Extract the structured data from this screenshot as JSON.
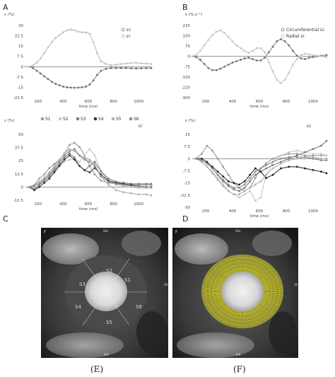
{
  "panel_letters": {
    "a": "A",
    "b": "B",
    "c": "C",
    "d": "D"
  },
  "chart_data": [
    {
      "id": "A",
      "type": "line",
      "ylabel": "ε (%)",
      "xlabel": "time (ms)",
      "ylim": [
        -22.5,
        30
      ],
      "xlim": [
        100,
        1100
      ],
      "yticks": [
        "30",
        "22.5",
        "15",
        "7.5",
        "0",
        "-7.5",
        "-15",
        "-22.5"
      ],
      "ytick_values": [
        30,
        22.5,
        15,
        7.5,
        0,
        -7.5,
        -15,
        -22.5
      ],
      "xticks": [
        "200",
        "400",
        "600",
        "800",
        "1000"
      ],
      "xtick_values": [
        200,
        400,
        600,
        800,
        1000
      ],
      "legend_placement": "top-right",
      "series": [
        {
          "name": "εc",
          "color": "#909090",
          "marker": "#707070",
          "x": [
            100,
            130,
            160,
            190,
            220,
            250,
            280,
            310,
            340,
            370,
            400,
            430,
            460,
            490,
            520,
            550,
            580,
            610,
            640,
            670,
            700,
            740,
            780,
            820,
            860,
            900,
            940,
            980,
            1020,
            1060,
            1100
          ],
          "y": [
            0,
            0,
            -1,
            -3,
            -5,
            -7,
            -9,
            -11,
            -12.5,
            -13.5,
            -14.5,
            -15,
            -15.2,
            -15.3,
            -15.2,
            -15,
            -14.5,
            -13,
            -10,
            -6,
            -3,
            -1.5,
            -1,
            -1,
            -1,
            -1,
            -1.2,
            -1.3,
            -1.2,
            -1.1,
            -1
          ]
        },
        {
          "name": "εr",
          "color": "#bbbbbb",
          "marker": "#c4c4c4",
          "x": [
            100,
            130,
            160,
            190,
            220,
            250,
            280,
            310,
            340,
            370,
            400,
            430,
            460,
            490,
            520,
            550,
            580,
            610,
            640,
            670,
            700,
            740,
            780,
            820,
            860,
            900,
            940,
            980,
            1020,
            1060,
            1100
          ],
          "y": [
            0,
            0,
            1,
            3,
            6,
            10,
            14,
            18,
            21,
            23,
            25,
            26.5,
            27,
            26.5,
            25.5,
            25,
            25,
            24,
            18,
            10,
            4,
            2,
            1,
            1.5,
            2,
            2.3,
            2.6,
            2.8,
            2.5,
            2.3,
            2
          ]
        }
      ]
    },
    {
      "id": "B",
      "type": "line",
      "ylabel": "ε̇ (%.s⁻¹)",
      "xlabel": "time (ms)",
      "ylim": [
        -300,
        225
      ],
      "xlim": [
        100,
        1100
      ],
      "yticks": [
        "225",
        "150",
        "75",
        "0",
        "-75",
        "-150",
        "-225",
        "-300"
      ],
      "ytick_values": [
        225,
        150,
        75,
        0,
        -75,
        -150,
        -225,
        -300
      ],
      "xticks": [
        "200",
        "400",
        "600",
        "800",
        "1000"
      ],
      "xtick_values": [
        200,
        400,
        600,
        800,
        1000
      ],
      "legend_placement": "top-right",
      "series": [
        {
          "name": "Circumferential ε̇c",
          "color": "#888888",
          "marker": "#707070",
          "x": [
            100,
            130,
            160,
            190,
            220,
            250,
            280,
            310,
            340,
            370,
            400,
            430,
            460,
            490,
            520,
            550,
            580,
            610,
            640,
            670,
            700,
            730,
            760,
            790,
            820,
            850,
            880,
            910,
            940,
            970,
            1000,
            1030,
            1060,
            1100
          ],
          "y": [
            0,
            -5,
            -25,
            -55,
            -85,
            -100,
            -100,
            -90,
            -75,
            -60,
            -45,
            -35,
            -25,
            -15,
            -10,
            -20,
            -30,
            -30,
            -10,
            30,
            70,
            110,
            125,
            110,
            80,
            40,
            5,
            -15,
            -20,
            -10,
            -5,
            0,
            5,
            10
          ]
        },
        {
          "name": "Radial ε̇r",
          "color": "#c0c0c0",
          "marker": "#c8c8c8",
          "x": [
            100,
            130,
            160,
            190,
            220,
            250,
            280,
            310,
            340,
            370,
            400,
            430,
            460,
            490,
            520,
            550,
            580,
            610,
            640,
            670,
            700,
            730,
            760,
            790,
            820,
            850,
            880,
            910,
            940,
            970,
            1000,
            1030,
            1060,
            1100
          ],
          "y": [
            0,
            10,
            40,
            80,
            120,
            155,
            180,
            190,
            170,
            140,
            110,
            80,
            60,
            40,
            25,
            40,
            60,
            60,
            30,
            -40,
            -110,
            -170,
            -195,
            -170,
            -120,
            -60,
            -20,
            10,
            20,
            15,
            10,
            5,
            0,
            -5
          ]
        }
      ]
    },
    {
      "id": "C",
      "type": "line",
      "ylabel": "ε (%)",
      "xlabel": "time (ms)",
      "title_right": "εr",
      "ylim": [
        -12.5,
        50
      ],
      "xlim": [
        100,
        1100
      ],
      "yticks": [
        "50",
        "37.5",
        "25",
        "12.5",
        "0",
        "-12.5"
      ],
      "ytick_values": [
        50,
        37.5,
        25,
        12.5,
        0,
        -12.5
      ],
      "xticks": [
        "200",
        "400",
        "600",
        "800",
        "1000"
      ],
      "xtick_values": [
        200,
        400,
        600,
        800,
        1000
      ],
      "legend_placement": "top",
      "series": [
        {
          "name": "S1",
          "color": "#9a9a9a",
          "marker": "#9a9a9a",
          "x": [
            130,
            170,
            210,
            250,
            290,
            330,
            370,
            410,
            450,
            490,
            530,
            570,
            610,
            650,
            700,
            760,
            820,
            880,
            940,
            1000,
            1060,
            1100
          ],
          "y": [
            0,
            2,
            8,
            12,
            18,
            22,
            26,
            32,
            40,
            42,
            38,
            30,
            20,
            12,
            6,
            4,
            3,
            3,
            2,
            2,
            2,
            2
          ]
        },
        {
          "name": "S2",
          "color": "#c8c8c8",
          "marker": "#c8c8c8",
          "x": [
            130,
            170,
            210,
            250,
            290,
            330,
            370,
            410,
            450,
            490,
            530,
            570,
            610,
            650,
            700,
            760,
            820,
            880,
            940,
            1000,
            1060,
            1100
          ],
          "y": [
            0,
            1,
            4,
            8,
            12,
            16,
            20,
            24,
            26,
            26,
            24,
            30,
            36,
            30,
            15,
            6,
            2,
            1,
            0,
            -1,
            -1,
            -1
          ]
        },
        {
          "name": "S3",
          "color": "#7a7a7a",
          "marker": "#7a7a7a",
          "x": [
            130,
            170,
            210,
            250,
            290,
            330,
            370,
            410,
            450,
            490,
            530,
            570,
            610,
            650,
            700,
            760,
            820,
            880,
            940,
            1000,
            1060,
            1100
          ],
          "y": [
            0,
            -2,
            2,
            6,
            10,
            16,
            22,
            28,
            32,
            28,
            20,
            16,
            20,
            24,
            15,
            8,
            5,
            4,
            3,
            3,
            3,
            3
          ]
        },
        {
          "name": "S4",
          "color": "#444444",
          "marker": "#333333",
          "x": [
            130,
            170,
            210,
            250,
            290,
            330,
            370,
            410,
            450,
            490,
            530,
            570,
            610,
            650,
            700,
            760,
            820,
            880,
            940,
            1000,
            1060,
            1100
          ],
          "y": [
            0,
            -3,
            0,
            4,
            8,
            14,
            20,
            26,
            30,
            26,
            20,
            16,
            14,
            18,
            12,
            6,
            4,
            3,
            2,
            1,
            0,
            0
          ]
        },
        {
          "name": "S5",
          "color": "#b0b0b0",
          "marker": "#b0b0b0",
          "x": [
            130,
            170,
            210,
            250,
            290,
            330,
            370,
            410,
            450,
            490,
            530,
            570,
            610,
            650,
            700,
            760,
            820,
            880,
            940,
            1000,
            1060,
            1100
          ],
          "y": [
            0,
            2,
            5,
            9,
            14,
            20,
            26,
            32,
            36,
            34,
            30,
            28,
            26,
            22,
            10,
            2,
            -3,
            -5,
            -6,
            -7,
            -7,
            -8
          ]
        },
        {
          "name": "S6",
          "color": "#8c8c8c",
          "marker": "#8c8c8c",
          "x": [
            130,
            170,
            210,
            250,
            290,
            330,
            370,
            410,
            450,
            490,
            530,
            570,
            610,
            650,
            700,
            760,
            820,
            880,
            940,
            1000,
            1060,
            1100
          ],
          "y": [
            0,
            1,
            3,
            7,
            12,
            18,
            24,
            30,
            34,
            36,
            30,
            26,
            24,
            20,
            10,
            5,
            3,
            2,
            1,
            1,
            0,
            0
          ]
        }
      ]
    },
    {
      "id": "D",
      "type": "line",
      "ylabel": "ε (%)",
      "xlabel": "time (ms)",
      "title_right": "εc",
      "ylim": [
        -30,
        15
      ],
      "xlim": [
        100,
        1100
      ],
      "yticks": [
        "15",
        "7.5",
        "0",
        "-7.5",
        "-15",
        "-22.5",
        "-30"
      ],
      "ytick_values": [
        15,
        7.5,
        0,
        -7.5,
        -15,
        -22.5,
        -30
      ],
      "xticks": [
        "200",
        "400",
        "600",
        "800",
        "1000"
      ],
      "xtick_values": [
        200,
        400,
        600,
        800,
        1000
      ],
      "series": [
        {
          "name": "S1",
          "color": "#9a9a9a",
          "marker": "#9a9a9a",
          "x": [
            130,
            170,
            210,
            250,
            290,
            330,
            370,
            410,
            450,
            490,
            530,
            570,
            610,
            650,
            700,
            760,
            820,
            880,
            940,
            1000,
            1060,
            1100
          ],
          "y": [
            0,
            3,
            8,
            5,
            0,
            -5,
            -10,
            -15,
            -18,
            -20,
            -18,
            -12,
            -6,
            -3,
            0,
            2,
            3,
            3,
            2,
            2,
            2,
            2
          ]
        },
        {
          "name": "S2",
          "color": "#c8c8c8",
          "marker": "#c8c8c8",
          "x": [
            130,
            170,
            210,
            250,
            290,
            330,
            370,
            410,
            450,
            490,
            530,
            570,
            610,
            650,
            700,
            760,
            820,
            880,
            940,
            1000,
            1060,
            1100
          ],
          "y": [
            0,
            -2,
            -5,
            -8,
            -12,
            -16,
            -20,
            -22,
            -24,
            -22,
            -20,
            -26,
            -24,
            -10,
            -2,
            2,
            4,
            5,
            4,
            3,
            3,
            2
          ]
        },
        {
          "name": "S3",
          "color": "#7a7a7a",
          "marker": "#7a7a7a",
          "x": [
            130,
            170,
            210,
            250,
            290,
            330,
            370,
            410,
            450,
            490,
            530,
            570,
            610,
            650,
            700,
            760,
            820,
            880,
            940,
            1000,
            1060,
            1100
          ],
          "y": [
            0,
            -1,
            -3,
            -6,
            -10,
            -14,
            -17,
            -19,
            -20,
            -18,
            -14,
            -10,
            -8,
            -6,
            -4,
            -2,
            0,
            2,
            4,
            6,
            8,
            11
          ]
        },
        {
          "name": "S4",
          "color": "#333333",
          "marker": "#222222",
          "x": [
            130,
            170,
            210,
            250,
            290,
            330,
            370,
            410,
            450,
            490,
            530,
            570,
            610,
            650,
            700,
            760,
            820,
            880,
            940,
            1000,
            1060,
            1100
          ],
          "y": [
            0,
            0,
            -2,
            -5,
            -8,
            -11,
            -14,
            -15,
            -16,
            -14,
            -10,
            -6,
            -8,
            -12,
            -10,
            -6,
            -5,
            -5,
            -6,
            -7,
            -8,
            -9
          ]
        },
        {
          "name": "S5",
          "color": "#b0b0b0",
          "marker": "#b0b0b0",
          "x": [
            130,
            170,
            210,
            250,
            290,
            330,
            370,
            410,
            450,
            490,
            530,
            570,
            610,
            650,
            700,
            760,
            820,
            880,
            940,
            1000,
            1060,
            1100
          ],
          "y": [
            0,
            -2,
            -5,
            -9,
            -13,
            -17,
            -20,
            -22,
            -22,
            -20,
            -18,
            -16,
            -14,
            -10,
            -6,
            -3,
            -1,
            0,
            1,
            1,
            0,
            0
          ]
        },
        {
          "name": "S6",
          "color": "#8c8c8c",
          "marker": "#8c8c8c",
          "x": [
            130,
            170,
            210,
            250,
            290,
            330,
            370,
            410,
            450,
            490,
            530,
            570,
            610,
            650,
            700,
            760,
            820,
            880,
            940,
            1000,
            1060,
            1100
          ],
          "y": [
            0,
            -1,
            -3,
            -6,
            -10,
            -13,
            -16,
            -18,
            -18,
            -16,
            -12,
            -8,
            -6,
            -4,
            -2,
            0,
            1,
            1,
            1,
            0,
            -1,
            -1
          ]
        }
      ]
    }
  ],
  "mri_left": {
    "corner": "F",
    "top": "SAL",
    "bottom": "IPR",
    "side": "20",
    "segments": [
      "S1",
      "S2",
      "S3",
      "S4",
      "S5",
      "S6"
    ]
  },
  "mri_right": {
    "corner": "F",
    "top": "SAL",
    "bottom": "IPR",
    "side": "20",
    "mesh_color": "#d9d520"
  },
  "captions": {
    "e": "(E)",
    "f": "(F)"
  }
}
